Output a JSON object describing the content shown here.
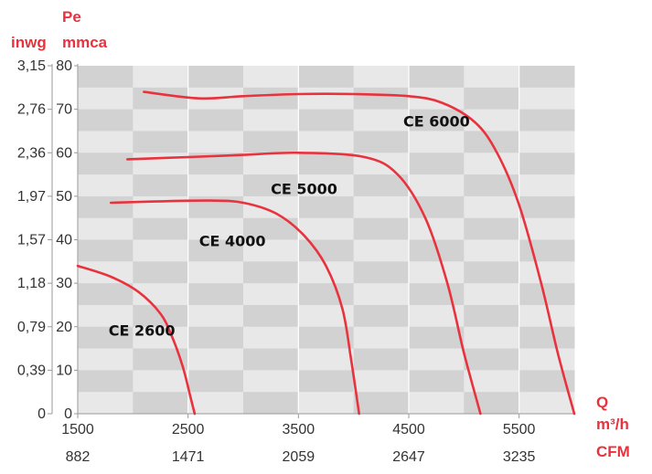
{
  "chart_data": {
    "type": "line",
    "y_left_header": "inwg",
    "y_right_header_top": "Pe",
    "y_right_header": "mmca",
    "x_header_top": "Q",
    "x_header_mid": "m³/h",
    "x_header_bottom": "CFM",
    "y_ticks_inwg": [
      "3,15",
      "2,76",
      "2,36",
      "1,97",
      "1,57",
      "1,18",
      "0,79",
      "0,39",
      "0"
    ],
    "y_ticks_mmca": [
      "80",
      "70",
      "60",
      "50",
      "40",
      "30",
      "20",
      "10",
      "0"
    ],
    "x_ticks_m3h": [
      "1500",
      "2500",
      "3500",
      "4500",
      "5500"
    ],
    "x_ticks_cfm": [
      "882",
      "1471",
      "2059",
      "2647",
      "3235"
    ],
    "xlim": [
      1500,
      6000
    ],
    "ylim": [
      0,
      80
    ],
    "grid": true,
    "series": [
      {
        "name": "CE 2600",
        "color": "#e8333e",
        "x": [
          1500,
          1800,
          2050,
          2250,
          2350,
          2450,
          2520,
          2560
        ],
        "y": [
          34,
          31.5,
          28,
          23,
          18,
          11,
          4,
          0
        ]
      },
      {
        "name": "CE 4000",
        "color": "#e8333e",
        "x": [
          1800,
          2200,
          2700,
          3000,
          3300,
          3550,
          3750,
          3900,
          3980,
          4050
        ],
        "y": [
          48.5,
          48.8,
          49,
          48.5,
          46,
          41,
          34,
          24,
          12,
          0
        ]
      },
      {
        "name": "CE 5000",
        "color": "#e8333e",
        "x": [
          1950,
          2500,
          3000,
          3500,
          4100,
          4400,
          4650,
          4850,
          5000,
          5150
        ],
        "y": [
          58.5,
          59,
          59.5,
          60,
          59,
          55,
          45,
          30,
          14,
          0
        ]
      },
      {
        "name": "CE 6000",
        "color": "#e8333e",
        "x": [
          2100,
          2600,
          3000,
          3500,
          4000,
          4500,
          4800,
          5100,
          5300,
          5500,
          5700,
          5850,
          6000
        ],
        "y": [
          74,
          72.5,
          73,
          73.5,
          73.5,
          73,
          71.5,
          67,
          60,
          48,
          30,
          14,
          0
        ]
      }
    ],
    "annotations": [
      {
        "text": "CE 2600",
        "series": "CE 2600"
      },
      {
        "text": "CE 4000",
        "series": "CE 4000"
      },
      {
        "text": "CE 5000",
        "series": "CE 5000"
      },
      {
        "text": "CE 6000",
        "series": "CE 6000"
      }
    ]
  }
}
